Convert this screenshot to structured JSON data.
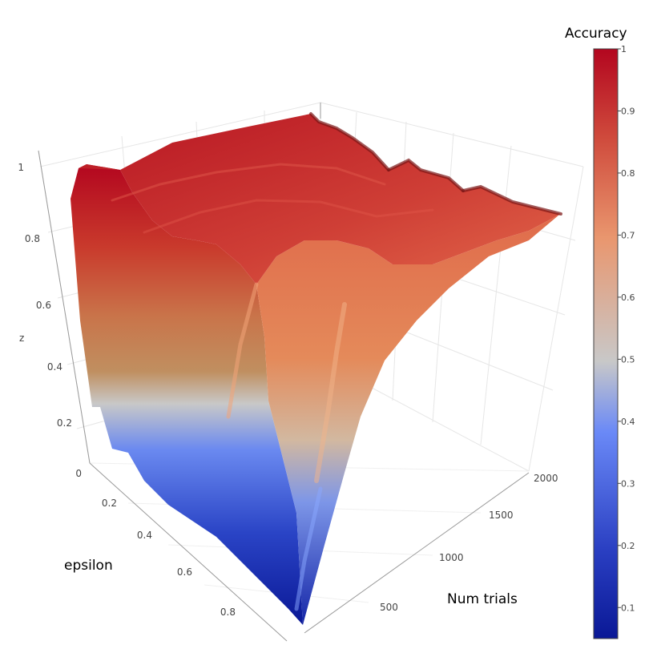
{
  "chart_data": {
    "type": "surface",
    "axes": {
      "x": {
        "title": "epsilon",
        "ticks": [
          "0.2",
          "0.4",
          "0.6",
          "0.8"
        ]
      },
      "y": {
        "title": "Num trials",
        "ticks": [
          "500",
          "1000",
          "1500",
          "2000"
        ]
      },
      "z": {
        "title": "z",
        "range": [
          0,
          1
        ],
        "ticks": [
          "0",
          "0.2",
          "0.4",
          "0.6",
          "0.8",
          "1"
        ]
      }
    },
    "colorbar": {
      "title": "Accuracy",
      "ticks": [
        "0.1",
        "0.2",
        "0.3",
        "0.4",
        "0.5",
        "0.6",
        "0.7",
        "0.8",
        "0.9",
        "1"
      ],
      "range": [
        0.05,
        1
      ]
    },
    "colorscale": [
      [
        0.0,
        "#0a1896"
      ],
      [
        0.35,
        "#6a89f7"
      ],
      [
        0.5,
        "#c8c8c8"
      ],
      [
        0.7,
        "#e9966e"
      ],
      [
        1.0,
        "#b3061f"
      ]
    ],
    "surface_z_estimates": {
      "epsilon": [
        0.05,
        0.2,
        0.4,
        0.6,
        0.8,
        0.95
      ],
      "num_trials": [
        100,
        500,
        1000,
        1500,
        2000
      ],
      "z": [
        [
          0.92,
          0.95,
          0.97,
          0.98,
          0.99
        ],
        [
          0.9,
          0.93,
          0.95,
          0.96,
          0.97
        ],
        [
          0.8,
          0.9,
          0.93,
          0.95,
          0.96
        ],
        [
          0.3,
          0.82,
          0.9,
          0.92,
          0.94
        ],
        [
          0.08,
          0.55,
          0.85,
          0.88,
          0.9
        ],
        [
          0.02,
          0.4,
          0.78,
          0.84,
          0.88
        ]
      ]
    }
  }
}
